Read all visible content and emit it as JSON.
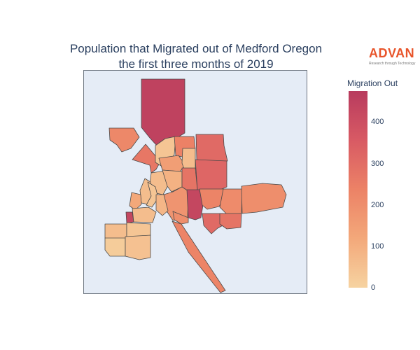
{
  "title": {
    "line1": "Population that Migrated out of Medford Oregon",
    "line2": "the first three months of 2019"
  },
  "logo": {
    "word": "ADVAN",
    "tagline": "Research through Technology"
  },
  "colorbar": {
    "title": "Migration Out",
    "min": 0,
    "max": 475,
    "colors": [
      "#f6d3a1",
      "#f3a87a",
      "#ec8266",
      "#d85a64",
      "#b83b5e"
    ],
    "ticks": [
      {
        "value": 0,
        "label": "0"
      },
      {
        "value": 100,
        "label": "100"
      },
      {
        "value": 200,
        "label": "200"
      },
      {
        "value": 300,
        "label": "300"
      },
      {
        "value": 400,
        "label": "400"
      }
    ]
  },
  "map": {
    "background": "#e5ecf6",
    "regions": [
      {
        "id": "north-strip",
        "value": 450
      },
      {
        "id": "nw-diagonal",
        "value": 270
      },
      {
        "id": "nw-upper",
        "value": 220
      },
      {
        "id": "north-center-a",
        "value": 40
      },
      {
        "id": "north-center-b",
        "value": 240
      },
      {
        "id": "north-center-c",
        "value": 150
      },
      {
        "id": "north-center-d",
        "value": 60
      },
      {
        "id": "ne-upper",
        "value": 310
      },
      {
        "id": "ne-mid",
        "value": 320
      },
      {
        "id": "center-a",
        "value": 60
      },
      {
        "id": "center-b",
        "value": 90
      },
      {
        "id": "center-c",
        "value": 280
      },
      {
        "id": "center-d",
        "value": 180
      },
      {
        "id": "center-hot",
        "value": 430
      },
      {
        "id": "center-e",
        "value": 200
      },
      {
        "id": "east-a",
        "value": 230
      },
      {
        "id": "east-b",
        "value": 210
      },
      {
        "id": "east-far",
        "value": 200
      },
      {
        "id": "south-east-a",
        "value": 310
      },
      {
        "id": "south-east-b",
        "value": 280
      },
      {
        "id": "se-diagonal",
        "value": 230
      },
      {
        "id": "west-a",
        "value": 60
      },
      {
        "id": "west-b",
        "value": 40
      },
      {
        "id": "west-c",
        "value": 80
      },
      {
        "id": "west-d",
        "value": 120
      },
      {
        "id": "west-hot",
        "value": 430
      },
      {
        "id": "west-e",
        "value": 60
      },
      {
        "id": "sw-a",
        "value": 60
      },
      {
        "id": "sw-b",
        "value": 40
      },
      {
        "id": "sw-c",
        "value": 20
      },
      {
        "id": "sw-d",
        "value": 50
      }
    ]
  }
}
